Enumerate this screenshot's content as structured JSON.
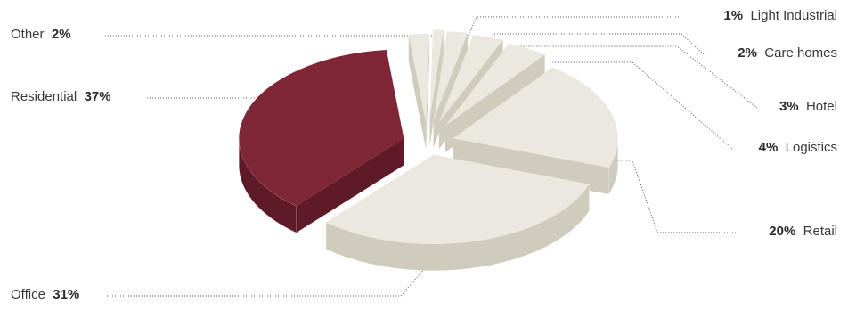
{
  "chart_data": {
    "type": "pie",
    "style": "3d-exploded",
    "slices": [
      {
        "label": "Residential",
        "value_label": "37%",
        "value": 37,
        "color": "#7f2637",
        "side_color": "#5e1a27"
      },
      {
        "label": "Office",
        "value_label": "31%",
        "value": 31,
        "color": "#ebe8df",
        "side_color": "#cfccbd"
      },
      {
        "label": "Retail",
        "value_label": "20%",
        "value": 20,
        "color": "#ebe8df",
        "side_color": "#cfccbd"
      },
      {
        "label": "Logistics",
        "value_label": "4%",
        "value": 4,
        "color": "#ebe8df",
        "side_color": "#cfccbd"
      },
      {
        "label": "Hotel",
        "value_label": "3%",
        "value": 3,
        "color": "#ebe8df",
        "side_color": "#cfccbd"
      },
      {
        "label": "Care homes",
        "value_label": "2%",
        "value": 2,
        "color": "#ebe8df",
        "side_color": "#cfccbd"
      },
      {
        "label": "Light Industrial",
        "value_label": "1%",
        "value": 1,
        "color": "#ebe8df",
        "side_color": "#cfccbd"
      },
      {
        "label": "Other",
        "value_label": "2%",
        "value": 2,
        "color": "#ebe8df",
        "side_color": "#cfccbd"
      }
    ],
    "title": "",
    "leader_lines": "dotted"
  }
}
